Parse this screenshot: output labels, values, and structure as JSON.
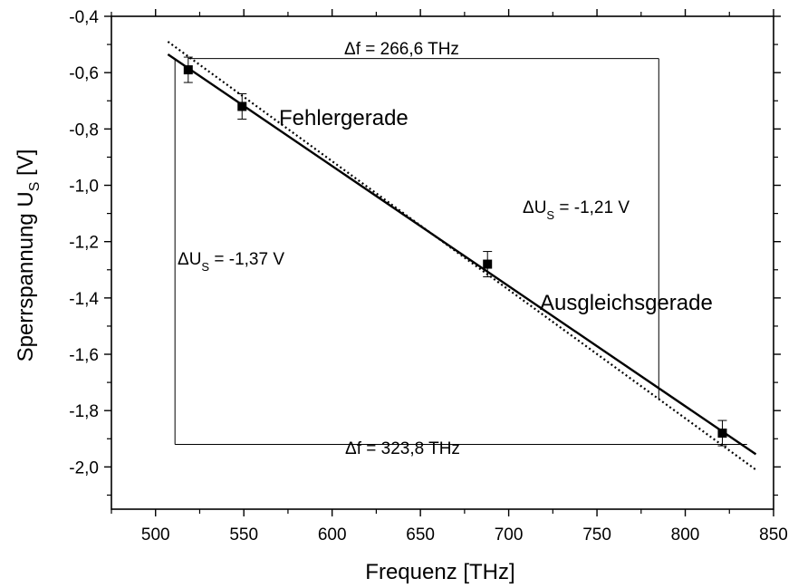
{
  "chart_data": {
    "type": "scatter",
    "xlabel": "Frequenz [THz]",
    "ylabel": "Sperrspannung U",
    "ylabel_sub": "S",
    "ylabel_unit": " [V]",
    "xlim": [
      475,
      850
    ],
    "ylim": [
      -2.15,
      -0.4
    ],
    "x_ticks": [
      500,
      550,
      600,
      650,
      700,
      750,
      800,
      850
    ],
    "x_tick_labels": [
      "500",
      "550",
      "600",
      "650",
      "700",
      "750",
      "800",
      "850"
    ],
    "y_ticks": [
      -0.4,
      -0.6,
      -0.8,
      -1.0,
      -1.2,
      -1.4,
      -1.6,
      -1.8,
      -2.0
    ],
    "y_tick_labels": [
      "-0,4",
      "-0,6",
      "-0,8",
      "-1,0",
      "-1,2",
      "-1,4",
      "-1,6",
      "-1,8",
      "-2,0"
    ],
    "grid": false,
    "series": [
      {
        "kind": "points",
        "x": [
          518.5,
          549,
          688,
          821
        ],
        "y": [
          -0.59,
          -0.72,
          -1.28,
          -1.88
        ],
        "err": [
          0.045,
          0.045,
          0.045,
          0.045
        ]
      },
      {
        "name": "Ausgleichsgerade",
        "kind": "line",
        "style": "solid",
        "x": [
          507,
          840
        ],
        "y": [
          -0.535,
          -1.955
        ]
      },
      {
        "name": "Fehlergerade",
        "kind": "line",
        "style": "dotted",
        "x": [
          507,
          840
        ],
        "y": [
          -0.49,
          -2.01
        ]
      }
    ],
    "annotations": {
      "fehler_label": "Fehlergerade",
      "ausgleich_label": "Ausgleichsgerade",
      "df_top": "Δf = 266,6 THz",
      "df_bottom": "Δf = 323,8 THz",
      "du_right_prefix": "ΔU",
      "du_right_sub": "S",
      "du_right_suffix": " = -1,21 V",
      "du_left_prefix": "ΔU",
      "du_left_sub": "S",
      "du_left_suffix": " = -1,37 V"
    },
    "triangles": {
      "top": {
        "x0": 518.5,
        "x1": 785,
        "y_top": -0.55,
        "y_bottom": -1.76
      },
      "bottom": {
        "x0": 511,
        "x1": 835,
        "y_top": -0.55,
        "y_bottom": -1.92
      }
    }
  }
}
